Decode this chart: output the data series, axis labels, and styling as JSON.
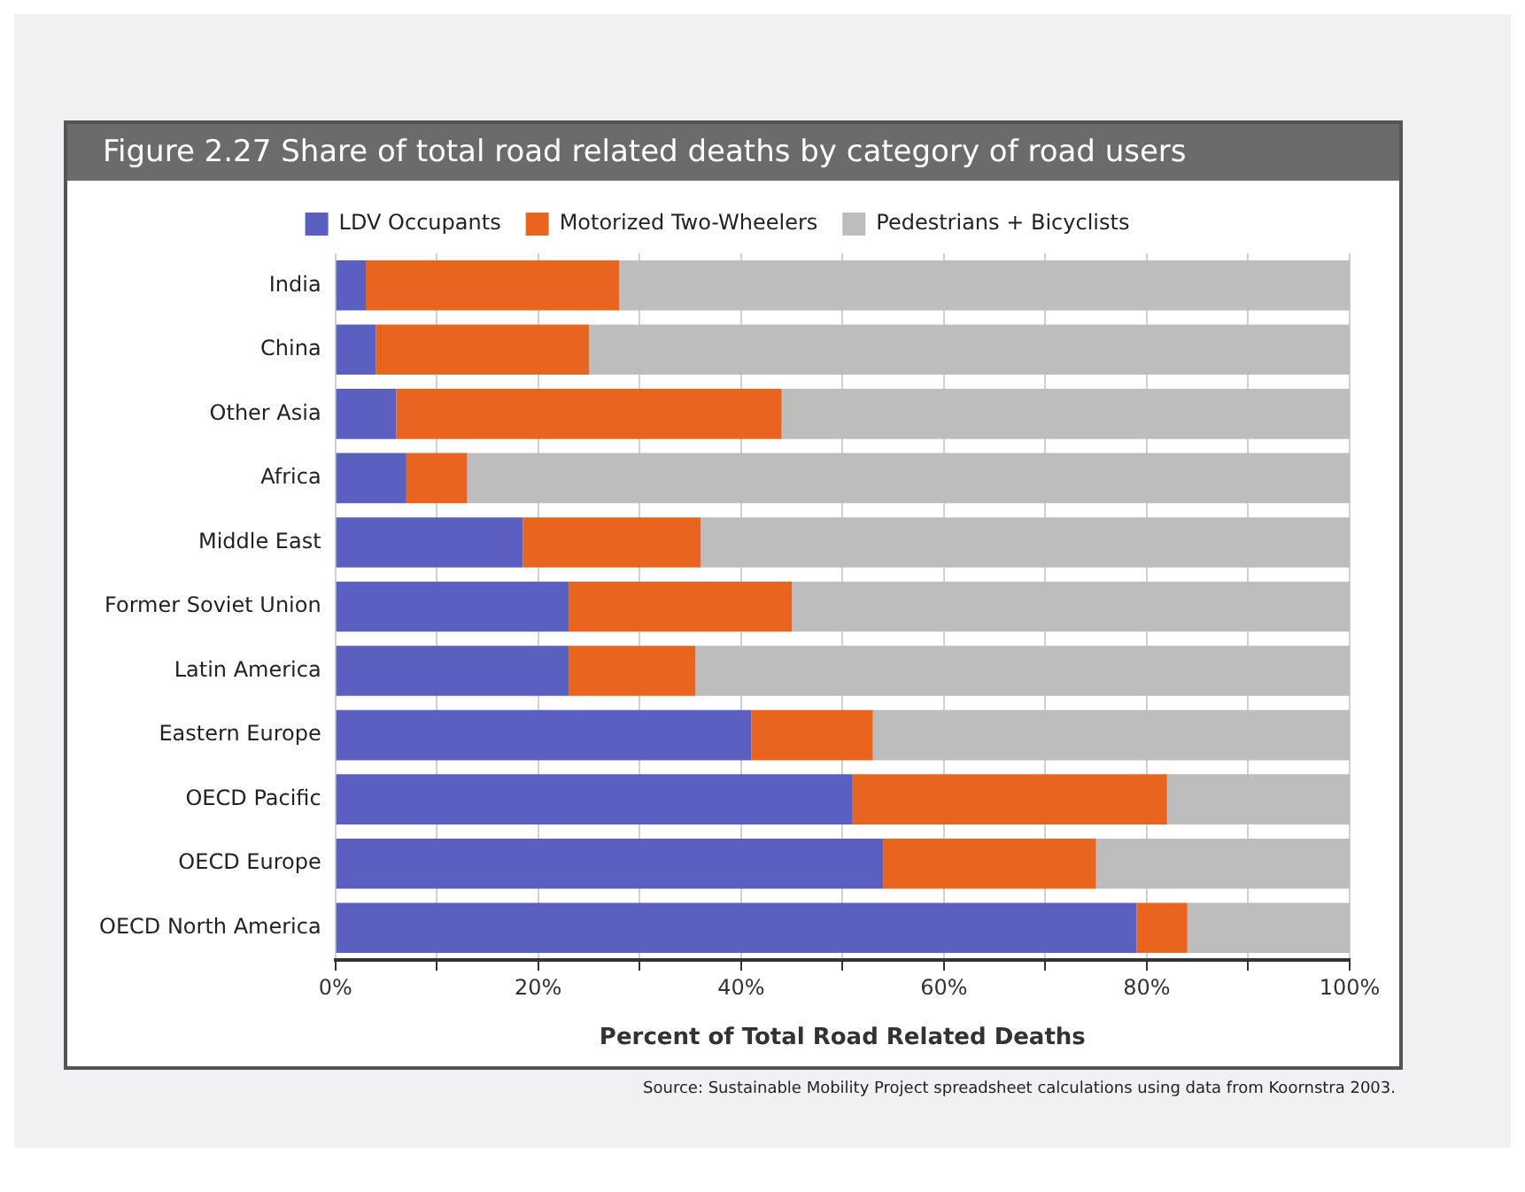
{
  "chart_data": {
    "type": "bar",
    "orientation": "horizontal",
    "stacked": true,
    "title": "Figure 2.27  Share of total road related deaths by category of road users",
    "xlabel": "Percent of Total Road Related Deaths",
    "annotations": [
      "Source: Sustainable Mobility Project spreadsheet calculations using data from Koornstra 2003."
    ],
    "categories": [
      "India",
      "China",
      "Other Asia",
      "Africa",
      "Middle East",
      "Former Soviet Union",
      "Latin America",
      "Eastern Europe",
      "OECD Pacific",
      "OECD Europe",
      "OECD North America"
    ],
    "series": [
      {
        "name": "LDV Occupants",
        "color": "#5b5fbf",
        "values": [
          3,
          4,
          6,
          7,
          18.5,
          23,
          23,
          41,
          51,
          54,
          79
        ]
      },
      {
        "name": "Motorized Two-Wheelers",
        "color": "#e8641f",
        "values": [
          25,
          21,
          38,
          6,
          17.5,
          22,
          12.5,
          12,
          31,
          21,
          5
        ]
      },
      {
        "name": "Pedestrians + Bicyclists",
        "color": "#bdbdbd",
        "values": [
          72,
          75,
          56,
          87,
          64,
          55,
          64.5,
          47,
          18,
          25,
          16
        ]
      }
    ],
    "xlim": [
      0,
      100
    ],
    "xticks": [
      {
        "value": 0,
        "label": "0%"
      },
      {
        "value": 10,
        "label": null
      },
      {
        "value": 20,
        "label": "20%"
      },
      {
        "value": 30,
        "label": null
      },
      {
        "value": 40,
        "label": "40%"
      },
      {
        "value": 50,
        "label": null
      },
      {
        "value": 60,
        "label": "60%"
      },
      {
        "value": 70,
        "label": null
      },
      {
        "value": 80,
        "label": "80%"
      },
      {
        "value": 90,
        "label": null
      },
      {
        "value": 100,
        "label": "100%"
      }
    ],
    "grid": "x",
    "legend": "top"
  }
}
